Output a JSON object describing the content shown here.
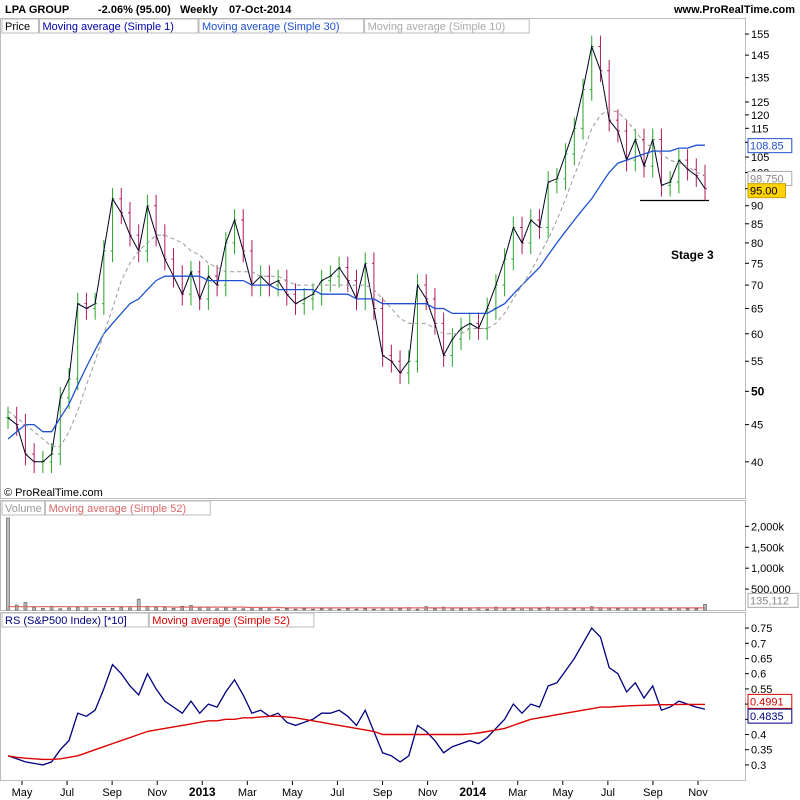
{
  "header": {
    "symbol": "LPA GROUP",
    "change": "-2.06% (95.00)",
    "period": "Weekly",
    "date": "07-Oct-2014",
    "site": "www.ProRealTime.com"
  },
  "price_panel": {
    "legend": [
      "Price",
      "Moving average (Simple 1)",
      "Moving average (Simple 30)",
      "Moving average (Simple 10)"
    ],
    "legend_colors": [
      "#000000",
      "#0000aa",
      "#1e50d0",
      "#aaaaaa"
    ],
    "copyright": "© ProRealTime.com",
    "annotation": "Stage 3",
    "yticks": [
      "155",
      "145",
      "135",
      "125",
      "120",
      "115",
      "110",
      "105",
      "100",
      "95",
      "90",
      "85",
      "80",
      "75",
      "70",
      "65",
      "60",
      "55",
      "50",
      "45",
      "40"
    ],
    "badges": [
      {
        "text": "108.85",
        "bg": "#ffffff",
        "fg": "#1e50d0",
        "border": "#1e50d0"
      },
      {
        "text": "98.750",
        "bg": "#ffffff",
        "fg": "#888888",
        "border": "#aaaaaa"
      },
      {
        "text": "95.00",
        "bg": "#ffd200",
        "fg": "#000000",
        "border": "#c8a000"
      }
    ]
  },
  "volume_panel": {
    "legend": [
      "Volume",
      "Moving average (Simple 52)"
    ],
    "legend_colors": [
      "#999999",
      "#dd6666"
    ],
    "yticks": [
      "2,000k",
      "1,500k",
      "1,000k",
      "500,000"
    ],
    "badge": "135,112"
  },
  "rs_panel": {
    "legend": [
      "RS (S&P500 Index) [*10]",
      "Moving average (Simple 52)"
    ],
    "legend_colors": [
      "#000080",
      "#dd0000"
    ],
    "yticks": [
      "0.75",
      "0.7",
      "0.65",
      "0.6",
      "0.55",
      "0.5",
      "0.45",
      "0.4",
      "0.35",
      "0.3"
    ],
    "badges": [
      {
        "text": "0.4991",
        "bg": "#ffffff",
        "fg": "#dd0000",
        "border": "#dd0000"
      },
      {
        "text": "0.4835",
        "bg": "#ffffff",
        "fg": "#000080",
        "border": "#000080"
      }
    ]
  },
  "x_axis": {
    "labels": [
      "May",
      "Jul",
      "Sep",
      "Nov",
      "2013",
      "Mar",
      "May",
      "Jul",
      "Sep",
      "Nov",
      "2014",
      "Mar",
      "May",
      "Jul",
      "Sep",
      "Nov"
    ],
    "bold": [
      false,
      false,
      false,
      false,
      true,
      false,
      false,
      false,
      false,
      false,
      true,
      false,
      false,
      false,
      false,
      false
    ]
  },
  "chart_data": [
    {
      "type": "line",
      "title": "LPA GROUP Weekly",
      "ylim": [
        38,
        157
      ],
      "log_scale": true,
      "series": [
        {
          "name": "Price",
          "values": [
            46,
            45,
            41,
            40,
            40,
            41,
            49,
            52,
            66,
            65,
            66,
            78,
            92,
            88,
            82,
            78,
            90,
            82,
            76,
            72,
            68,
            73,
            67,
            72,
            70,
            80,
            86,
            78,
            70,
            72,
            70,
            71,
            68,
            66,
            67,
            68,
            71,
            72,
            74,
            71,
            67,
            75,
            65,
            56,
            55,
            53,
            55,
            70,
            67,
            62,
            56,
            59,
            61,
            62,
            61,
            65,
            70,
            76,
            84,
            80,
            86,
            84,
            97,
            98,
            106,
            115,
            130,
            149,
            138,
            118,
            114,
            104,
            111,
            102,
            111,
            96,
            97,
            104,
            101,
            99,
            95
          ]
        },
        {
          "name": "Moving average (Simple 30)",
          "values": [
            43,
            44,
            45,
            45,
            44,
            44,
            46,
            48,
            51,
            54,
            57,
            60,
            62,
            64,
            66,
            67,
            69,
            71,
            72,
            72,
            72,
            72,
            72,
            71,
            71,
            71,
            71,
            71,
            70,
            70,
            70,
            69,
            69,
            69,
            69,
            69,
            68,
            68,
            68,
            68,
            67,
            67,
            67,
            66,
            66,
            66,
            66,
            66,
            66,
            65,
            65,
            64,
            64,
            64,
            64,
            64,
            65,
            66,
            68,
            70,
            72,
            74,
            77,
            80,
            83,
            86,
            89,
            92,
            96,
            100,
            103,
            104,
            105,
            106,
            107,
            107,
            107,
            108,
            108,
            109,
            109
          ]
        },
        {
          "name": "Moving average (Simple 10)",
          "values": [
            47,
            46,
            45,
            44,
            43,
            42,
            42,
            44,
            47,
            51,
            55,
            60,
            65,
            71,
            75,
            78,
            80,
            82,
            82,
            81,
            80,
            78,
            77,
            75,
            74,
            73,
            73,
            73,
            73,
            72,
            72,
            72,
            71,
            70,
            70,
            70,
            70,
            70,
            70,
            70,
            70,
            70,
            69,
            67,
            65,
            63,
            62,
            62,
            62,
            61,
            60,
            60,
            60,
            61,
            61,
            61,
            62,
            64,
            67,
            70,
            73,
            77,
            81,
            86,
            92,
            99,
            106,
            115,
            120,
            122,
            121,
            118,
            114,
            110,
            108,
            106,
            104,
            103,
            102,
            100,
            99
          ]
        }
      ]
    },
    {
      "type": "bar",
      "title": "Volume",
      "ylim": [
        0,
        2200000
      ],
      "series": [
        {
          "name": "Volume",
          "values": [
            2200000,
            120000,
            180000,
            60000,
            40000,
            90000,
            30000,
            50000,
            60000,
            80000,
            30000,
            40000,
            40000,
            60000,
            50000,
            260000,
            90000,
            60000,
            60000,
            40000,
            90000,
            110000,
            50000,
            60000,
            30000,
            50000,
            40000,
            30000,
            30000,
            40000,
            30000,
            20000,
            30000,
            20000,
            30000,
            20000,
            30000,
            40000,
            20000,
            30000,
            20000,
            30000,
            20000,
            40000,
            50000,
            30000,
            60000,
            20000,
            80000,
            30000,
            70000,
            40000,
            30000,
            40000,
            60000,
            20000,
            70000,
            40000,
            30000,
            50000,
            40000,
            30000,
            70000,
            40000,
            50000,
            30000,
            40000,
            80000,
            60000,
            40000,
            30000,
            50000,
            40000,
            30000,
            50000,
            40000,
            30000,
            40000,
            30000,
            30000,
            135112
          ]
        },
        {
          "name": "Moving average (Simple 52)",
          "values": [
            80000,
            80000,
            80000,
            80000,
            80000,
            80000,
            80000,
            80000,
            80000,
            80000,
            80000,
            80000,
            80000,
            80000,
            80000,
            80000,
            80000,
            80000,
            80000,
            70000,
            70000,
            70000,
            70000,
            70000,
            70000,
            70000,
            70000,
            70000,
            60000,
            60000,
            60000,
            60000,
            50000,
            50000,
            50000,
            50000,
            50000,
            50000,
            50000,
            50000,
            50000,
            50000,
            50000,
            50000,
            50000,
            50000,
            50000,
            50000,
            50000,
            50000,
            50000,
            50000,
            50000,
            50000,
            50000,
            50000,
            50000,
            50000,
            50000,
            50000,
            50000,
            50000,
            50000,
            50000,
            50000,
            50000,
            50000,
            50000,
            50000,
            50000,
            50000,
            50000,
            50000,
            50000,
            50000,
            50000,
            50000,
            50000,
            50000,
            50000,
            50000
          ]
        }
      ]
    },
    {
      "type": "line",
      "title": "RS (S&P500 Index) [*10]",
      "ylim": [
        0.28,
        0.77
      ],
      "series": [
        {
          "name": "RS (S&P500 Index) [*10]",
          "values": [
            0.33,
            0.32,
            0.31,
            0.305,
            0.3,
            0.31,
            0.35,
            0.38,
            0.47,
            0.46,
            0.48,
            0.55,
            0.63,
            0.6,
            0.56,
            0.53,
            0.6,
            0.55,
            0.51,
            0.49,
            0.47,
            0.51,
            0.47,
            0.5,
            0.49,
            0.54,
            0.58,
            0.53,
            0.47,
            0.48,
            0.46,
            0.47,
            0.44,
            0.43,
            0.44,
            0.45,
            0.47,
            0.47,
            0.48,
            0.46,
            0.43,
            0.48,
            0.41,
            0.34,
            0.33,
            0.31,
            0.33,
            0.43,
            0.41,
            0.38,
            0.34,
            0.36,
            0.37,
            0.38,
            0.37,
            0.39,
            0.42,
            0.45,
            0.5,
            0.47,
            0.5,
            0.49,
            0.56,
            0.57,
            0.61,
            0.65,
            0.7,
            0.75,
            0.72,
            0.62,
            0.6,
            0.54,
            0.57,
            0.52,
            0.56,
            0.48,
            0.49,
            0.51,
            0.5,
            0.49,
            0.4835
          ]
        },
        {
          "name": "Moving average (Simple 52)",
          "values": [
            0.33,
            0.325,
            0.322,
            0.32,
            0.318,
            0.318,
            0.32,
            0.325,
            0.33,
            0.34,
            0.35,
            0.36,
            0.37,
            0.38,
            0.39,
            0.4,
            0.41,
            0.415,
            0.42,
            0.425,
            0.43,
            0.435,
            0.44,
            0.445,
            0.445,
            0.45,
            0.45,
            0.455,
            0.455,
            0.458,
            0.46,
            0.46,
            0.458,
            0.455,
            0.45,
            0.445,
            0.44,
            0.435,
            0.43,
            0.425,
            0.42,
            0.415,
            0.41,
            0.4,
            0.4,
            0.4,
            0.4,
            0.4,
            0.4,
            0.4,
            0.4,
            0.4,
            0.4,
            0.402,
            0.405,
            0.41,
            0.415,
            0.42,
            0.43,
            0.44,
            0.45,
            0.455,
            0.46,
            0.465,
            0.47,
            0.475,
            0.48,
            0.485,
            0.49,
            0.49,
            0.492,
            0.494,
            0.495,
            0.496,
            0.497,
            0.498,
            0.498,
            0.499,
            0.499,
            0.4991,
            0.4991
          ]
        }
      ]
    }
  ]
}
